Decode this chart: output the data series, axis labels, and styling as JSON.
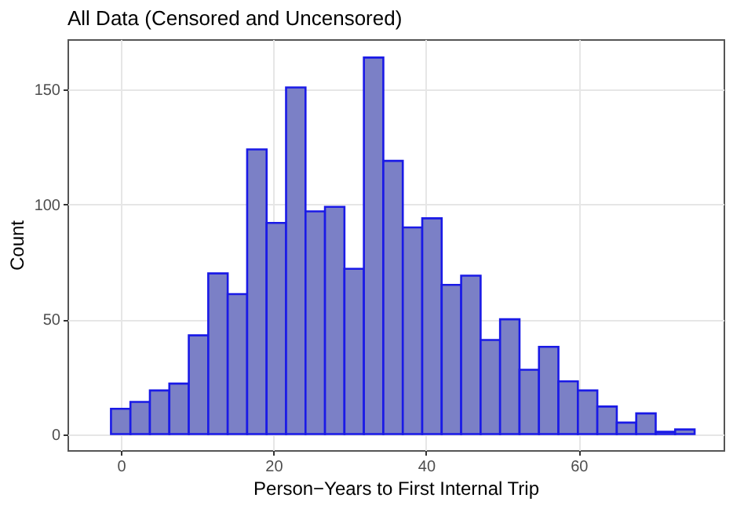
{
  "chart_data": {
    "type": "histogram",
    "title": "All Data (Censored and Uncensored)",
    "xlabel": "Person−Years to First Internal Trip",
    "ylabel": "Count",
    "bins": [
      -1.3,
      1.25,
      3.8,
      6.35,
      8.9,
      11.45,
      14,
      16.55,
      19.1,
      21.65,
      24.2,
      26.75,
      29.3,
      31.85,
      34.4,
      36.95,
      39.5,
      42.05,
      44.6,
      47.15,
      49.7,
      52.25,
      54.8,
      57.35,
      59.9,
      62.45,
      65,
      67.55,
      70.1,
      72.65,
      75.2
    ],
    "values": [
      11,
      14,
      19,
      22,
      43,
      70,
      61,
      124,
      92,
      151,
      97,
      99,
      72,
      164,
      119,
      90,
      94,
      65,
      69,
      41,
      50,
      28,
      38,
      23,
      19,
      12,
      5,
      9,
      1,
      2
    ],
    "color": "#7b80c6",
    "xlim": [
      -7,
      79
    ],
    "ylim": [
      -7,
      172
    ],
    "xticks": [
      0,
      20,
      40,
      60
    ],
    "yticks": [
      0,
      50,
      100,
      150
    ],
    "grid": true
  }
}
